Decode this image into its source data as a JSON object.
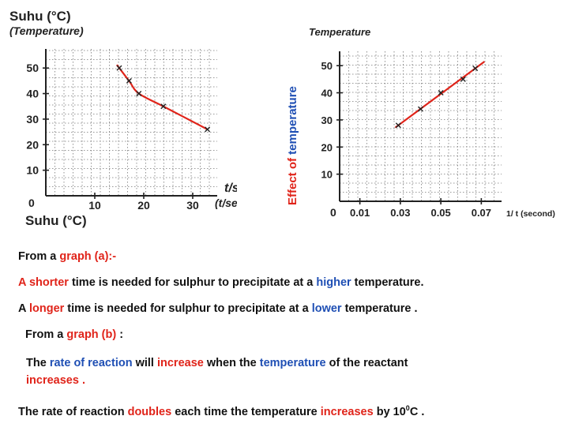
{
  "chart_data": [
    {
      "type": "line",
      "title": "Suhu (°C)",
      "subtitle": "(Temperature)",
      "xlabel": "t/saat",
      "xlabel_sub": "(t/second)",
      "ylabel_bottom": "Suhu (°C)",
      "xlim": [
        0,
        35
      ],
      "ylim": [
        0,
        55
      ],
      "xticks": [
        "10",
        "20",
        "30"
      ],
      "yticks": [
        "10",
        "20",
        "30",
        "40",
        "50"
      ],
      "origin_label": "0",
      "grid": true,
      "line_color": "#e0241a",
      "points": [
        {
          "x": 15,
          "y": 50
        },
        {
          "x": 17,
          "y": 45
        },
        {
          "x": 19,
          "y": 40
        },
        {
          "x": 24,
          "y": 35
        },
        {
          "x": 33,
          "y": 26
        }
      ]
    },
    {
      "type": "line",
      "title": "Temperature",
      "xlabel": "1/ t (second)",
      "xlim": [
        0,
        0.08
      ],
      "ylim": [
        0,
        55
      ],
      "xticks": [
        "0.01",
        "0.03",
        "0.05",
        "0.07"
      ],
      "yticks": [
        "10",
        "20",
        "30",
        "40",
        "50"
      ],
      "origin_label": "0",
      "grid": true,
      "line_color": "#e0241a",
      "points": [
        {
          "x": 0.029,
          "y": 28
        },
        {
          "x": 0.04,
          "y": 34
        },
        {
          "x": 0.05,
          "y": 40
        },
        {
          "x": 0.061,
          "y": 45
        },
        {
          "x": 0.067,
          "y": 49
        }
      ]
    }
  ],
  "side_title": {
    "part1": "Effect of ",
    "part2": "temperature"
  },
  "text": {
    "p1": {
      "a": "From a ",
      "b": "graph (a):-"
    },
    "p2": {
      "a": "A shorter",
      "b": " time is needed for sulphur  to precipitate at a ",
      "c": "higher",
      "d": " temperature."
    },
    "p3": {
      "a": "A ",
      "b": "longer",
      "c": " time is needed for sulphur to precipitate at a ",
      "d": "lower",
      "e": " temperature ."
    },
    "p4": {
      "a": "From a ",
      "b": "graph (b)",
      "c": " :"
    },
    "p5": {
      "a": "The ",
      "b": "rate of reaction",
      "c": " will ",
      "d": "increase",
      "e": " when the ",
      "f": "temperature",
      "g": " of the reactant"
    },
    "p6": {
      "a": "increases ."
    },
    "p7": {
      "a": "The rate of reaction ",
      "b": "doubles",
      "c": " each time the temperature ",
      "d": "increases",
      "e": " by 10",
      "sup": "0",
      "f": "C ."
    }
  },
  "colors": {
    "accent_red": "#e0241a",
    "accent_blue": "#1f4fb4"
  }
}
